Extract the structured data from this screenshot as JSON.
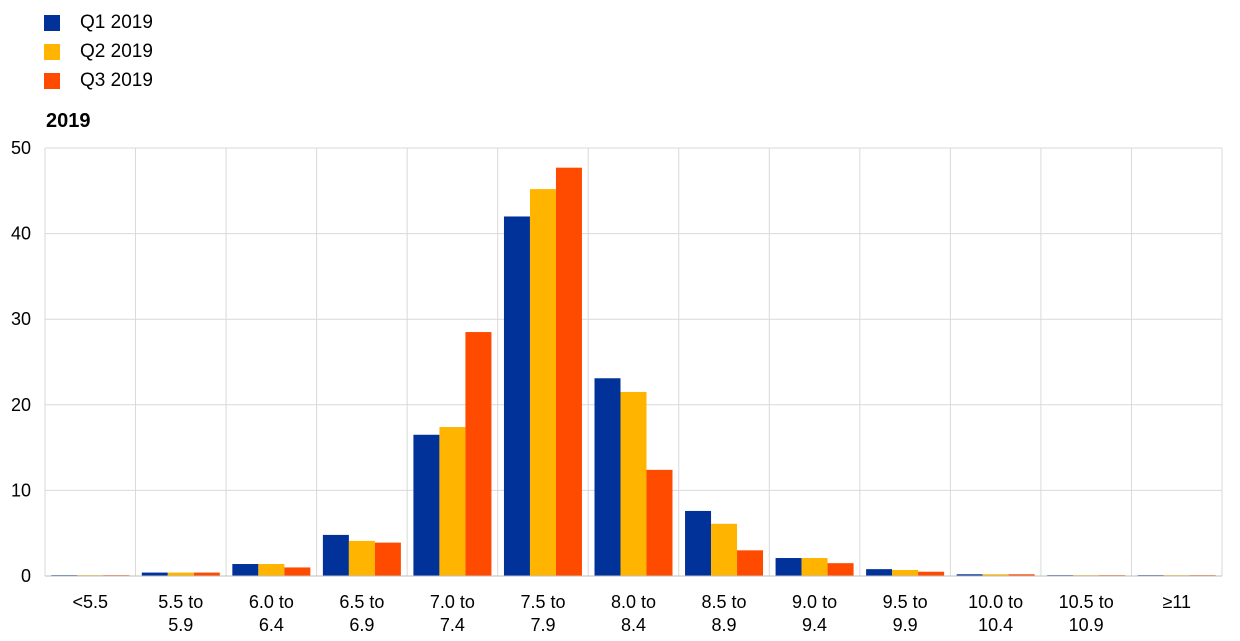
{
  "chart_data": {
    "type": "bar",
    "title": "2019",
    "xlabel": "",
    "ylabel": "",
    "ylim": [
      0,
      50
    ],
    "yticks": [
      0,
      10,
      20,
      30,
      40,
      50
    ],
    "grid": true,
    "legend_position": "top-left",
    "categories": [
      "<5.5",
      "5.5 to 5.9",
      "6.0 to 6.4",
      "6.5 to 6.9",
      "7.0 to 7.4",
      "7.5 to 7.9",
      "8.0 to 8.4",
      "8.5 to 8.9",
      "9.0 to 9.4",
      "9.5 to 9.9",
      "10.0 to 10.4",
      "10.5 to 10.9",
      "≥11"
    ],
    "category_lines": [
      [
        "<5.5"
      ],
      [
        "5.5 to",
        "5.9"
      ],
      [
        "6.0 to",
        "6.4"
      ],
      [
        "6.5 to",
        "6.9"
      ],
      [
        "7.0 to",
        "7.4"
      ],
      [
        "7.5 to",
        "7.9"
      ],
      [
        "8.0 to",
        "8.4"
      ],
      [
        "8.5 to",
        "8.9"
      ],
      [
        "9.0 to",
        "9.4"
      ],
      [
        "9.5 to",
        "9.9"
      ],
      [
        "10.0 to",
        "10.4"
      ],
      [
        "10.5 to",
        "10.9"
      ],
      [
        "≥11"
      ]
    ],
    "series": [
      {
        "name": "Q1 2019",
        "color": "#003299",
        "values": [
          0.1,
          0.4,
          1.4,
          4.8,
          16.5,
          42.0,
          23.1,
          7.6,
          2.1,
          0.8,
          0.2,
          0.1,
          0.1
        ]
      },
      {
        "name": "Q2 2019",
        "color": "#FFB400",
        "values": [
          0.1,
          0.4,
          1.4,
          4.1,
          17.4,
          45.2,
          21.5,
          6.1,
          2.1,
          0.7,
          0.2,
          0.1,
          0.1
        ]
      },
      {
        "name": "Q3 2019",
        "color": "#FF4B00",
        "values": [
          0.1,
          0.4,
          1.0,
          3.9,
          28.5,
          47.7,
          12.4,
          3.0,
          1.5,
          0.5,
          0.2,
          0.1,
          0.1
        ]
      }
    ]
  }
}
